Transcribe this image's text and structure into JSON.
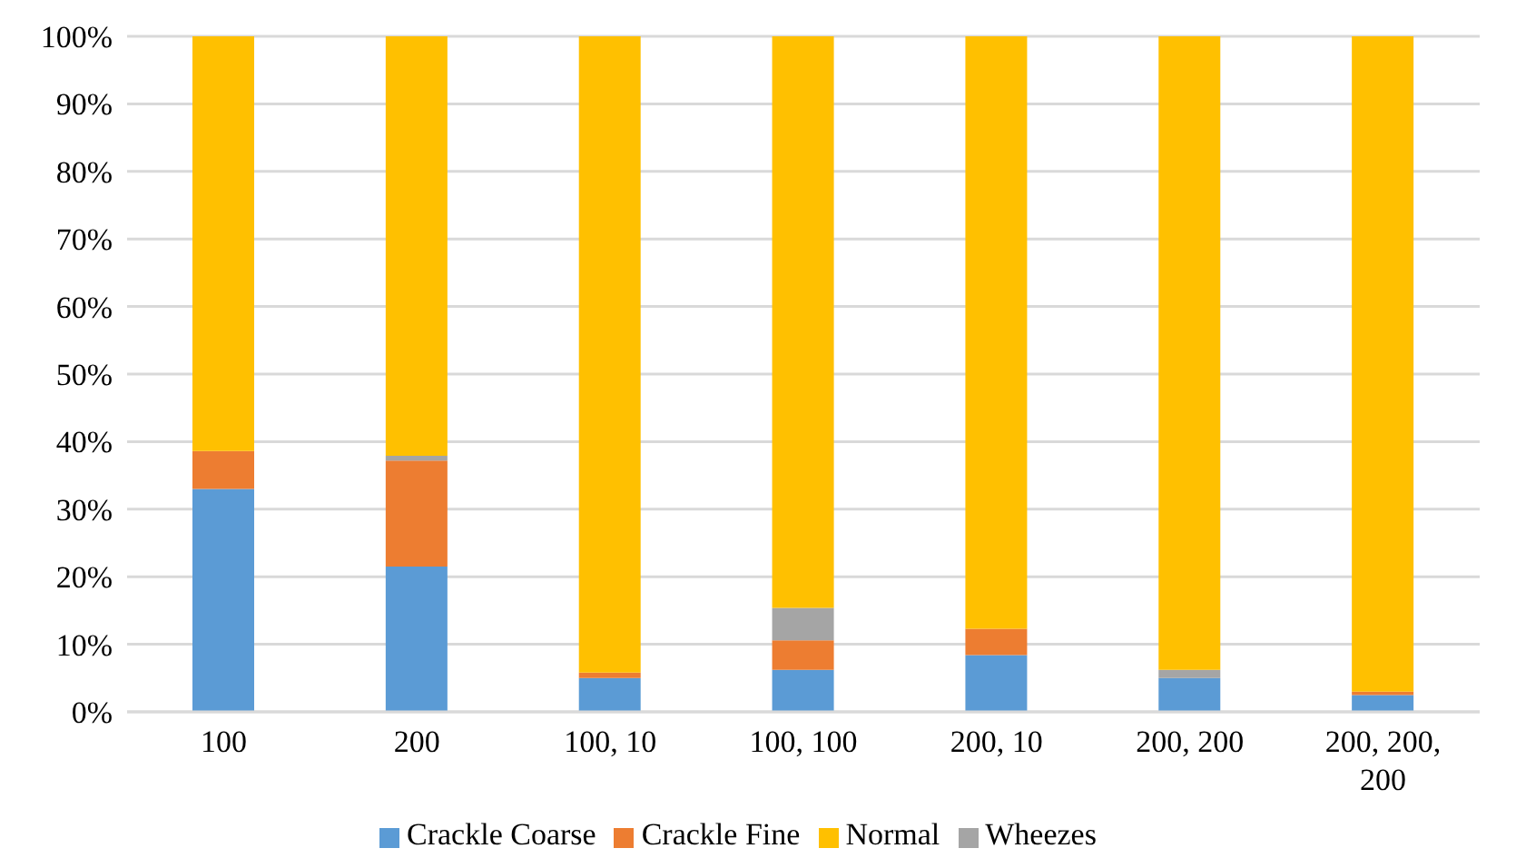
{
  "chart_data": {
    "type": "bar",
    "stacked": true,
    "categories": [
      "100",
      "200",
      "100, 10",
      "100, 100",
      "200, 10",
      "200, 200",
      "200, 200, 200"
    ],
    "series": [
      {
        "name": "Crackle Coarse",
        "color": "#5b9bd5",
        "values": [
          33.0,
          21.5,
          5.0,
          6.2,
          8.4,
          5.0,
          2.5
        ]
      },
      {
        "name": "Crackle Fine",
        "color": "#ed7d31",
        "values": [
          5.6,
          15.7,
          0.8,
          4.4,
          3.9,
          0,
          0.5
        ]
      },
      {
        "name": "Wheezes",
        "color": "#a5a5a5",
        "values": [
          0,
          0.7,
          0,
          4.8,
          0,
          1.2,
          0
        ]
      },
      {
        "name": "Normal",
        "color": "#ffc000",
        "values": [
          61.4,
          62.1,
          94.2,
          84.6,
          87.7,
          93.8,
          97.0
        ]
      }
    ],
    "ylim": [
      0,
      100
    ],
    "yticks": [
      {
        "value": 0,
        "label": "0%"
      },
      {
        "value": 10,
        "label": "10%"
      },
      {
        "value": 20,
        "label": "20%"
      },
      {
        "value": 30,
        "label": "30%"
      },
      {
        "value": 40,
        "label": "40%"
      },
      {
        "value": 50,
        "label": "50%"
      },
      {
        "value": 60,
        "label": "60%"
      },
      {
        "value": 70,
        "label": "70%"
      },
      {
        "value": 80,
        "label": "80%"
      },
      {
        "value": 90,
        "label": "90%"
      },
      {
        "value": 100,
        "label": "100%"
      }
    ],
    "grid": "y",
    "legend": "bottom"
  }
}
